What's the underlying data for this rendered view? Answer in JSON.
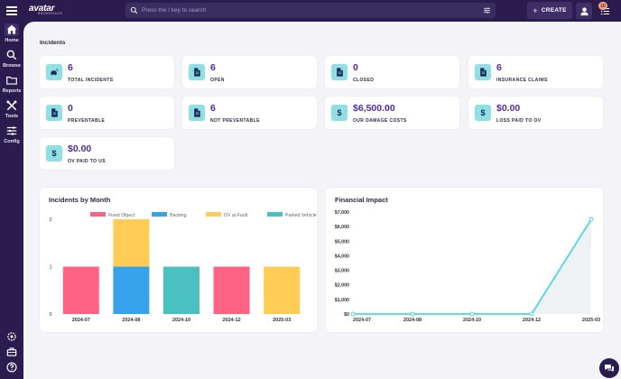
{
  "app": {
    "logo_text": "avatar",
    "logo_sub": "BROKERAGE"
  },
  "nav": {
    "items": [
      {
        "label": "Home",
        "icon": "home-icon",
        "active": true
      },
      {
        "label": "Browse",
        "icon": "search-icon"
      },
      {
        "label": "Reports",
        "icon": "folder-icon"
      },
      {
        "label": "Tools",
        "icon": "tools-icon"
      },
      {
        "label": "Config",
        "icon": "sliders-icon"
      }
    ],
    "bottom_icons": [
      "gear-icon",
      "briefcase-icon",
      "help-icon"
    ]
  },
  "header": {
    "search_placeholder": "Press the / key to search",
    "create_label": "CREATE",
    "notification_count": "10"
  },
  "incidents": {
    "title": "Incidents",
    "cards": [
      {
        "value": "6",
        "label": "TOTAL INCIDENTS",
        "icon": "car-crash-icon"
      },
      {
        "value": "6",
        "label": "OPEN",
        "icon": "document-icon"
      },
      {
        "value": "0",
        "label": "CLOSED",
        "icon": "document-icon"
      },
      {
        "value": "6",
        "label": "INSURANCE CLAIMS",
        "icon": "document-icon"
      },
      {
        "value": "0",
        "label": "PREVENTABLE",
        "icon": "document-icon"
      },
      {
        "value": "6",
        "label": "NOT PREVENTABLE",
        "icon": "document-icon"
      },
      {
        "value": "$6,500.00",
        "label": "OUR DAMAGE COSTS",
        "icon": "dollar-icon"
      },
      {
        "value": "$0.00",
        "label": "LOSS PAID TO OV",
        "icon": "dollar-icon"
      },
      {
        "value": "$0.00",
        "label": "OV PAID TO US",
        "icon": "dollar-icon"
      }
    ],
    "icon_color": "#8ee0e4",
    "value_color": "#4f2a9e"
  },
  "chart_data": [
    {
      "type": "bar",
      "title": "Incidents by Month",
      "categories": [
        "2024-07",
        "2024-08",
        "2024-10",
        "2024-12",
        "2025-03"
      ],
      "stacked": true,
      "series": [
        {
          "name": "Fixed Object",
          "color": "#ff6384",
          "values": [
            1,
            0,
            0,
            1,
            0
          ]
        },
        {
          "name": "Backing",
          "color": "#36a2eb",
          "values": [
            0,
            1,
            0,
            0,
            0
          ]
        },
        {
          "name": "OV at Fault",
          "color": "#ffcd56",
          "values": [
            0,
            1,
            0,
            0,
            1
          ]
        },
        {
          "name": "Parked Vehicle",
          "color": "#4bc0c0",
          "values": [
            0,
            0,
            1,
            0,
            0
          ]
        }
      ],
      "ylim": [
        0,
        2
      ],
      "yticks": [
        "0",
        "1",
        "2"
      ],
      "legend": "top"
    },
    {
      "type": "line",
      "title": "Financial Impact",
      "categories": [
        "2024-07",
        "2024-08",
        "2024-10",
        "2024-12",
        "2025-03"
      ],
      "series": [
        {
          "color": "#4dd6e3",
          "values": [
            0,
            0,
            0,
            0,
            6500
          ]
        }
      ],
      "ylim": [
        0,
        7000
      ],
      "yticks": [
        "$0",
        "$1,000",
        "$2,000",
        "$3,000",
        "$4,000",
        "$5,000",
        "$6,000",
        "$7,000"
      ]
    }
  ]
}
